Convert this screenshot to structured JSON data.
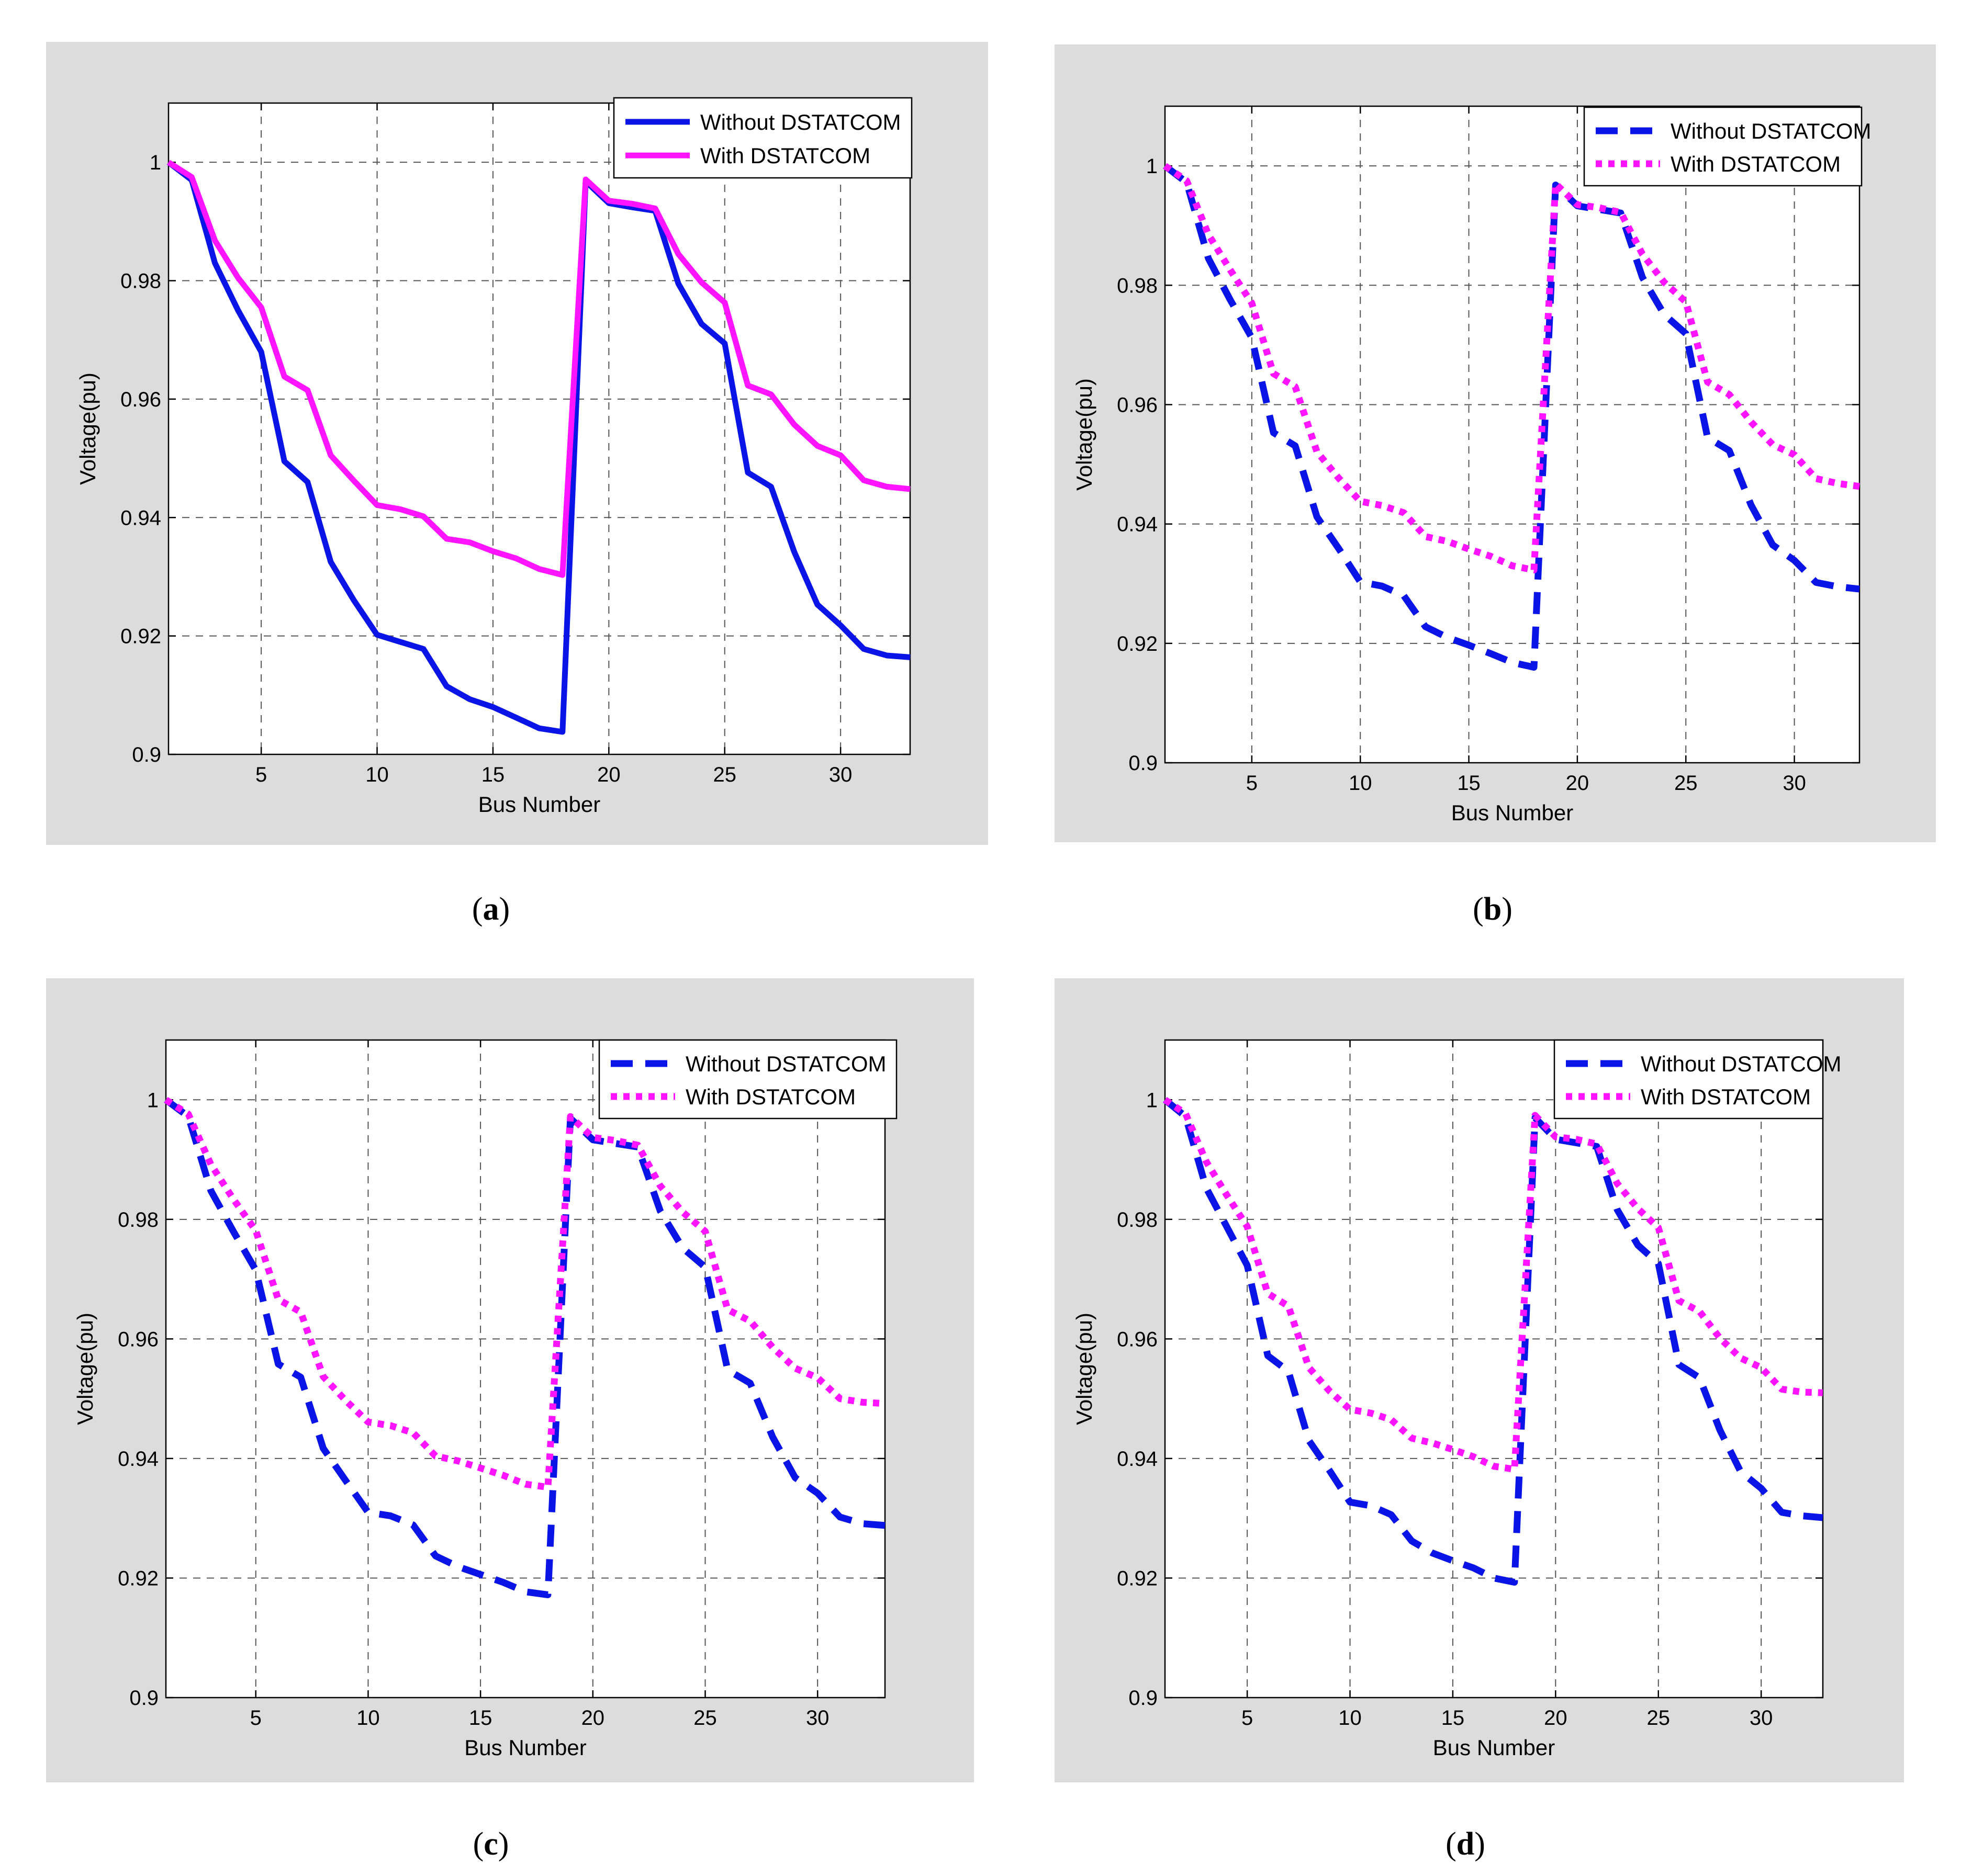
{
  "chart_data": [
    {
      "id": "a",
      "type": "line",
      "caption": "a",
      "xlabel": "Bus Number",
      "ylabel": "Voltage(pu)",
      "xlim": [
        1,
        33
      ],
      "ylim": [
        0.9,
        1.01
      ],
      "xticks": [
        5,
        10,
        15,
        20,
        25,
        30
      ],
      "yticks": [
        0.9,
        0.92,
        0.94,
        0.96,
        0.98,
        1
      ],
      "ytick_labels": [
        "0.9",
        "0.92",
        "0.94",
        "0.96",
        "0.98",
        "1"
      ],
      "grid": true,
      "legend_position": "top-right",
      "x": [
        1,
        2,
        3,
        4,
        5,
        6,
        7,
        8,
        9,
        10,
        11,
        12,
        13,
        14,
        15,
        16,
        17,
        18,
        19,
        20,
        21,
        22,
        23,
        24,
        25,
        26,
        27,
        28,
        29,
        30,
        31,
        32,
        33
      ],
      "series": [
        {
          "name": "Without DSTATCOM",
          "color": "#0a14e6",
          "style": "solid",
          "values": [
            1.0,
            0.997,
            0.983,
            0.975,
            0.968,
            0.9495,
            0.946,
            0.9325,
            0.926,
            0.9202,
            0.919,
            0.9178,
            0.9115,
            0.9093,
            0.908,
            0.9062,
            0.9044,
            0.9038,
            0.9968,
            0.9931,
            0.9924,
            0.9918,
            0.9795,
            0.9727,
            0.9694,
            0.9476,
            0.9452,
            0.9342,
            0.9253,
            0.9218,
            0.9178,
            0.9167,
            0.9164
          ]
        },
        {
          "name": "With DSTATCOM",
          "color": "#ff14ff",
          "style": "solid",
          "values": [
            1.0,
            0.9975,
            0.9868,
            0.9805,
            0.9755,
            0.9638,
            0.9615,
            0.9505,
            0.9462,
            0.9421,
            0.9414,
            0.9402,
            0.9364,
            0.9358,
            0.9343,
            0.9331,
            0.9313,
            0.9303,
            0.9971,
            0.9935,
            0.993,
            0.9922,
            0.9845,
            0.9797,
            0.9763,
            0.9623,
            0.9608,
            0.9557,
            0.9521,
            0.9505,
            0.9463,
            0.9452,
            0.9448
          ]
        }
      ]
    },
    {
      "id": "b",
      "type": "line",
      "caption": "b",
      "xlabel": "Bus Number",
      "ylabel": "Voltage(pu)",
      "xlim": [
        1,
        33
      ],
      "ylim": [
        0.9,
        1.01
      ],
      "xticks": [
        5,
        10,
        15,
        20,
        25,
        30
      ],
      "yticks": [
        0.9,
        0.92,
        0.94,
        0.96,
        0.98,
        1
      ],
      "ytick_labels": [
        "0.9",
        "0.92",
        "0.94",
        "0.96",
        "0.98",
        "1"
      ],
      "grid": true,
      "legend_position": "top-right",
      "x": [
        1,
        2,
        3,
        4,
        5,
        6,
        7,
        8,
        9,
        10,
        11,
        12,
        13,
        14,
        15,
        16,
        17,
        18,
        19,
        20,
        21,
        22,
        23,
        24,
        25,
        26,
        27,
        28,
        29,
        30,
        31,
        32,
        33
      ],
      "series": [
        {
          "name": "Without DSTATCOM",
          "color": "#0a14e6",
          "style": "dashed",
          "values": [
            1.0,
            0.9972,
            0.9845,
            0.9776,
            0.9712,
            0.9553,
            0.9531,
            0.9412,
            0.9359,
            0.9303,
            0.9296,
            0.928,
            0.9228,
            0.921,
            0.9197,
            0.9183,
            0.9168,
            0.916,
            0.9968,
            0.9933,
            0.9927,
            0.9921,
            0.9813,
            0.9751,
            0.9719,
            0.9545,
            0.9523,
            0.9432,
            0.9365,
            0.9339,
            0.9302,
            0.9295,
            0.9291
          ]
        },
        {
          "name": "With DSTATCOM",
          "color": "#ff14ff",
          "style": "dotted",
          "values": [
            1.0,
            0.9975,
            0.9885,
            0.9826,
            0.977,
            0.9652,
            0.963,
            0.9521,
            0.9477,
            0.9438,
            0.9431,
            0.9419,
            0.9379,
            0.9371,
            0.9358,
            0.9346,
            0.933,
            0.9323,
            0.997,
            0.9935,
            0.993,
            0.9922,
            0.9852,
            0.9805,
            0.9772,
            0.9638,
            0.9617,
            0.9571,
            0.9533,
            0.9516,
            0.9476,
            0.9468,
            0.9463
          ]
        }
      ]
    },
    {
      "id": "c",
      "type": "line",
      "caption": "c",
      "xlabel": "Bus Number",
      "ylabel": "Voltage(pu)",
      "xlim": [
        1,
        33
      ],
      "ylim": [
        0.9,
        1.01
      ],
      "xticks": [
        5,
        10,
        15,
        20,
        25,
        30
      ],
      "yticks": [
        0.9,
        0.92,
        0.94,
        0.96,
        0.98,
        1
      ],
      "ytick_labels": [
        "0.9",
        "0.92",
        "0.94",
        "0.96",
        "0.98",
        "1"
      ],
      "grid": true,
      "legend_position": "top-right",
      "x": [
        1,
        2,
        3,
        4,
        5,
        6,
        7,
        8,
        9,
        10,
        11,
        12,
        13,
        14,
        15,
        16,
        17,
        18,
        19,
        20,
        21,
        22,
        23,
        24,
        25,
        26,
        27,
        28,
        29,
        30,
        31,
        32,
        33
      ],
      "series": [
        {
          "name": "Without DSTATCOM",
          "color": "#0a14e6",
          "style": "dashed",
          "values": [
            1.0,
            0.9972,
            0.9848,
            0.978,
            0.9715,
            0.9558,
            0.9536,
            0.9417,
            0.9363,
            0.931,
            0.9304,
            0.9289,
            0.9237,
            0.9219,
            0.9206,
            0.9193,
            0.9177,
            0.9172,
            0.9969,
            0.9933,
            0.9927,
            0.9921,
            0.9814,
            0.9752,
            0.972,
            0.9548,
            0.9526,
            0.9436,
            0.9368,
            0.9342,
            0.9302,
            0.9291,
            0.9288
          ]
        },
        {
          "name": "With DSTATCOM",
          "color": "#ff14ff",
          "style": "dotted",
          "values": [
            1.0,
            0.9976,
            0.9892,
            0.9834,
            0.9781,
            0.9666,
            0.9645,
            0.9537,
            0.9497,
            0.9461,
            0.9455,
            0.9443,
            0.9404,
            0.9396,
            0.9384,
            0.9372,
            0.9357,
            0.9352,
            0.9972,
            0.9937,
            0.9932,
            0.9924,
            0.9856,
            0.9812,
            0.978,
            0.9649,
            0.963,
            0.9586,
            0.9551,
            0.9535,
            0.95,
            0.9494,
            0.9492
          ]
        }
      ]
    },
    {
      "id": "d",
      "type": "line",
      "caption": "d",
      "xlabel": "Bus Number",
      "ylabel": "Voltage(pu)",
      "xlim": [
        1,
        33
      ],
      "ylim": [
        0.9,
        1.01
      ],
      "xticks": [
        5,
        10,
        15,
        20,
        25,
        30
      ],
      "yticks": [
        0.9,
        0.92,
        0.94,
        0.96,
        0.98,
        1
      ],
      "ytick_labels": [
        "0.9",
        "0.92",
        "0.94",
        "0.96",
        "0.98",
        "1"
      ],
      "grid": true,
      "legend_position": "top-right",
      "x": [
        1,
        2,
        3,
        4,
        5,
        6,
        7,
        8,
        9,
        10,
        11,
        12,
        13,
        14,
        15,
        16,
        17,
        18,
        19,
        20,
        21,
        22,
        23,
        24,
        25,
        26,
        27,
        28,
        29,
        30,
        31,
        32,
        33
      ],
      "series": [
        {
          "name": "Without DSTATCOM",
          "color": "#0a14e6",
          "style": "dashed",
          "values": [
            1.0,
            0.9972,
            0.9853,
            0.9788,
            0.9723,
            0.9572,
            0.9546,
            0.943,
            0.938,
            0.9327,
            0.9321,
            0.9306,
            0.9262,
            0.9242,
            0.9229,
            0.9217,
            0.92,
            0.9193,
            0.997,
            0.9934,
            0.9928,
            0.9922,
            0.9816,
            0.9757,
            0.9726,
            0.9557,
            0.9535,
            0.9447,
            0.9378,
            0.935,
            0.931,
            0.9304,
            0.9301
          ]
        },
        {
          "name": "With DSTATCOM",
          "color": "#ff14ff",
          "style": "dotted",
          "values": [
            1.0,
            0.9977,
            0.9897,
            0.9841,
            0.9788,
            0.9676,
            0.9655,
            0.9552,
            0.9513,
            0.9482,
            0.9476,
            0.9465,
            0.9434,
            0.9426,
            0.9415,
            0.9403,
            0.9387,
            0.9382,
            0.9974,
            0.9938,
            0.9934,
            0.9926,
            0.986,
            0.9818,
            0.9786,
            0.9664,
            0.9646,
            0.9601,
            0.9568,
            0.9552,
            0.9516,
            0.9511,
            0.951
          ]
        }
      ]
    }
  ]
}
